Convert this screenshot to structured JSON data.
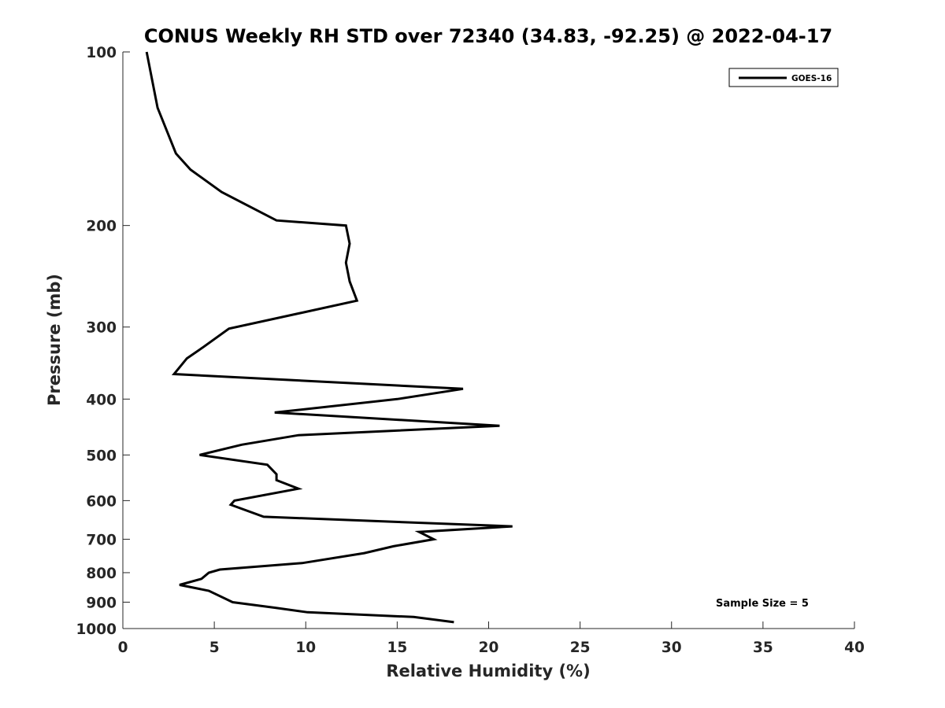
{
  "chart_data": {
    "type": "line",
    "title": "CONUS Weekly RH STD over 72340 (34.83, -92.25) @ 2022-04-17",
    "xlabel": "Relative Humidity (%)",
    "ylabel": "Pressure (mb)",
    "xlim": [
      0,
      40
    ],
    "ylim": [
      100,
      1000
    ],
    "y_scale": "log",
    "y_reversed": true,
    "x_ticks": [
      "0",
      "5",
      "10",
      "15",
      "20",
      "25",
      "30",
      "35",
      "40"
    ],
    "y_ticks": [
      "100",
      "200",
      "300",
      "400",
      "500",
      "600",
      "700",
      "800",
      "900",
      "1000"
    ],
    "grid": false,
    "legend_position": "top-right",
    "annotation": "Sample Size = 5",
    "series": [
      {
        "name": "GOES-16",
        "color": "#000000",
        "points": [
          [
            1.3,
            100
          ],
          [
            1.9,
            125
          ],
          [
            2.9,
            150
          ],
          [
            3.7,
            160
          ],
          [
            5.4,
            175
          ],
          [
            8.4,
            196
          ],
          [
            12.2,
            200
          ],
          [
            12.4,
            215
          ],
          [
            12.2,
            232
          ],
          [
            12.4,
            250
          ],
          [
            12.8,
            270
          ],
          [
            5.8,
            302
          ],
          [
            4.4,
            325
          ],
          [
            3.5,
            340
          ],
          [
            2.8,
            362
          ],
          [
            18.6,
            384
          ],
          [
            15.0,
            400
          ],
          [
            8.3,
            422
          ],
          [
            20.6,
            445
          ],
          [
            9.6,
            462
          ],
          [
            6.5,
            480
          ],
          [
            4.2,
            500
          ],
          [
            7.9,
            520
          ],
          [
            8.4,
            540
          ],
          [
            8.4,
            553
          ],
          [
            9.6,
            572
          ],
          [
            6.1,
            600
          ],
          [
            5.9,
            610
          ],
          [
            7.7,
            640
          ],
          [
            21.3,
            665
          ],
          [
            16.2,
            680
          ],
          [
            17.0,
            700
          ],
          [
            14.8,
            720
          ],
          [
            13.2,
            740
          ],
          [
            9.8,
            770
          ],
          [
            5.3,
            790
          ],
          [
            4.7,
            800
          ],
          [
            4.3,
            820
          ],
          [
            3.1,
            840
          ],
          [
            4.7,
            860
          ],
          [
            6.0,
            900
          ],
          [
            8.3,
            920
          ],
          [
            10.1,
            937
          ],
          [
            15.9,
            955
          ],
          [
            18.1,
            975
          ]
        ]
      }
    ]
  }
}
